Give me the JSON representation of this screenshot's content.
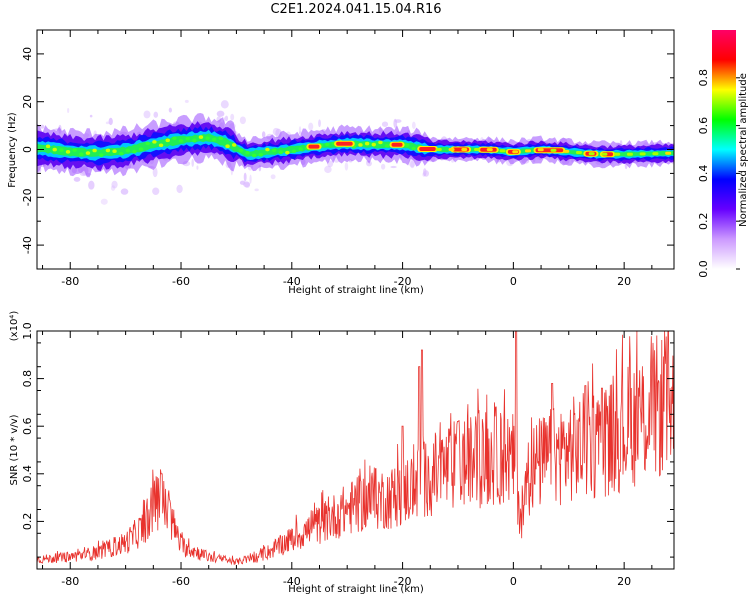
{
  "title": "C2E1.2024.041.15.04.R16",
  "chart_data": [
    {
      "type": "heatmap",
      "xlabel": "Height of straight line (km)",
      "ylabel": "Frequency (Hz)",
      "xlim": [
        -86,
        29
      ],
      "ylim": [
        -50,
        50
      ],
      "xticks": [
        -80,
        -60,
        -40,
        -20,
        0,
        20
      ],
      "yticks": [
        -40,
        -20,
        0,
        20,
        40
      ],
      "ridge": [
        {
          "x": -85,
          "y": 0.5
        },
        {
          "x": -80,
          "y": -1
        },
        {
          "x": -75,
          "y": -1.5
        },
        {
          "x": -70,
          "y": -0.5
        },
        {
          "x": -65,
          "y": 2
        },
        {
          "x": -60,
          "y": 4
        },
        {
          "x": -55,
          "y": 5
        },
        {
          "x": -52,
          "y": 3
        },
        {
          "x": -48,
          "y": -2
        },
        {
          "x": -44,
          "y": -1
        },
        {
          "x": -40,
          "y": 0
        },
        {
          "x": -35,
          "y": 1.5
        },
        {
          "x": -30,
          "y": 2.5
        },
        {
          "x": -25,
          "y": 2
        },
        {
          "x": -20,
          "y": 2
        },
        {
          "x": -15,
          "y": 0
        },
        {
          "x": -10,
          "y": 0
        },
        {
          "x": -5,
          "y": 0
        },
        {
          "x": 0,
          "y": -1
        },
        {
          "x": 5,
          "y": 0
        },
        {
          "x": 10,
          "y": -1
        },
        {
          "x": 15,
          "y": -2
        },
        {
          "x": 20,
          "y": -2
        },
        {
          "x": 29,
          "y": -1.5
        }
      ],
      "colorbar": {
        "label": "Normalized spectral amplitude",
        "range": [
          0.0,
          1.0
        ],
        "ticks": [
          "0.0",
          "0.2",
          "0.4",
          "0.6",
          "0.8"
        ],
        "colors": [
          "#ffffff",
          "#cc99ff",
          "#6600ff",
          "#0000ff",
          "#00ffff",
          "#00ff00",
          "#ffff00",
          "#ff0000",
          "#ff0066"
        ]
      }
    },
    {
      "type": "line",
      "xlabel": "Height of straight line (km)",
      "ylabel": "SNR (10 * v/v)",
      "multiplier_label": "(x10⁴)",
      "xlim": [
        -86,
        29
      ],
      "ylim": [
        0,
        1.0
      ],
      "xticks": [
        -80,
        -60,
        -40,
        -20,
        0,
        20
      ],
      "yticks": [
        "0.2",
        "0.4",
        "0.6",
        "0.8",
        "1.0"
      ],
      "series": [
        {
          "color": "#e8322d",
          "envelope": [
            {
              "x": -86,
              "y": 0.04
            },
            {
              "x": -80,
              "y": 0.05
            },
            {
              "x": -75,
              "y": 0.07
            },
            {
              "x": -70,
              "y": 0.11
            },
            {
              "x": -67,
              "y": 0.17
            },
            {
              "x": -64,
              "y": 0.3
            },
            {
              "x": -62,
              "y": 0.22
            },
            {
              "x": -60,
              "y": 0.1
            },
            {
              "x": -55,
              "y": 0.05
            },
            {
              "x": -50,
              "y": 0.03
            },
            {
              "x": -46,
              "y": 0.05
            },
            {
              "x": -42,
              "y": 0.1
            },
            {
              "x": -38,
              "y": 0.15
            },
            {
              "x": -34,
              "y": 0.2
            },
            {
              "x": -30,
              "y": 0.25
            },
            {
              "x": -26,
              "y": 0.29
            },
            {
              "x": -22,
              "y": 0.3
            },
            {
              "x": -18,
              "y": 0.35
            },
            {
              "x": -14,
              "y": 0.4
            },
            {
              "x": -10,
              "y": 0.44
            },
            {
              "x": -6,
              "y": 0.46
            },
            {
              "x": -2,
              "y": 0.48
            },
            {
              "x": 0,
              "y": 0.45
            },
            {
              "x": 1.5,
              "y": 0.2
            },
            {
              "x": 3,
              "y": 0.42
            },
            {
              "x": 6,
              "y": 0.46
            },
            {
              "x": 10,
              "y": 0.5
            },
            {
              "x": 14,
              "y": 0.52
            },
            {
              "x": 18,
              "y": 0.56
            },
            {
              "x": 22,
              "y": 0.62
            },
            {
              "x": 26,
              "y": 0.68
            },
            {
              "x": 29,
              "y": 0.71
            }
          ],
          "peaks": [
            {
              "x": -63.5,
              "y": 0.4
            },
            {
              "x": -16.5,
              "y": 0.92
            },
            {
              "x": -17,
              "y": 0.85
            },
            {
              "x": 0.5,
              "y": 1.0
            },
            {
              "x": -20,
              "y": 0.6
            },
            {
              "x": -10,
              "y": 0.62
            },
            {
              "x": 7,
              "y": 0.78
            },
            {
              "x": 13,
              "y": 0.77
            },
            {
              "x": 16,
              "y": 0.76
            }
          ]
        }
      ]
    }
  ]
}
